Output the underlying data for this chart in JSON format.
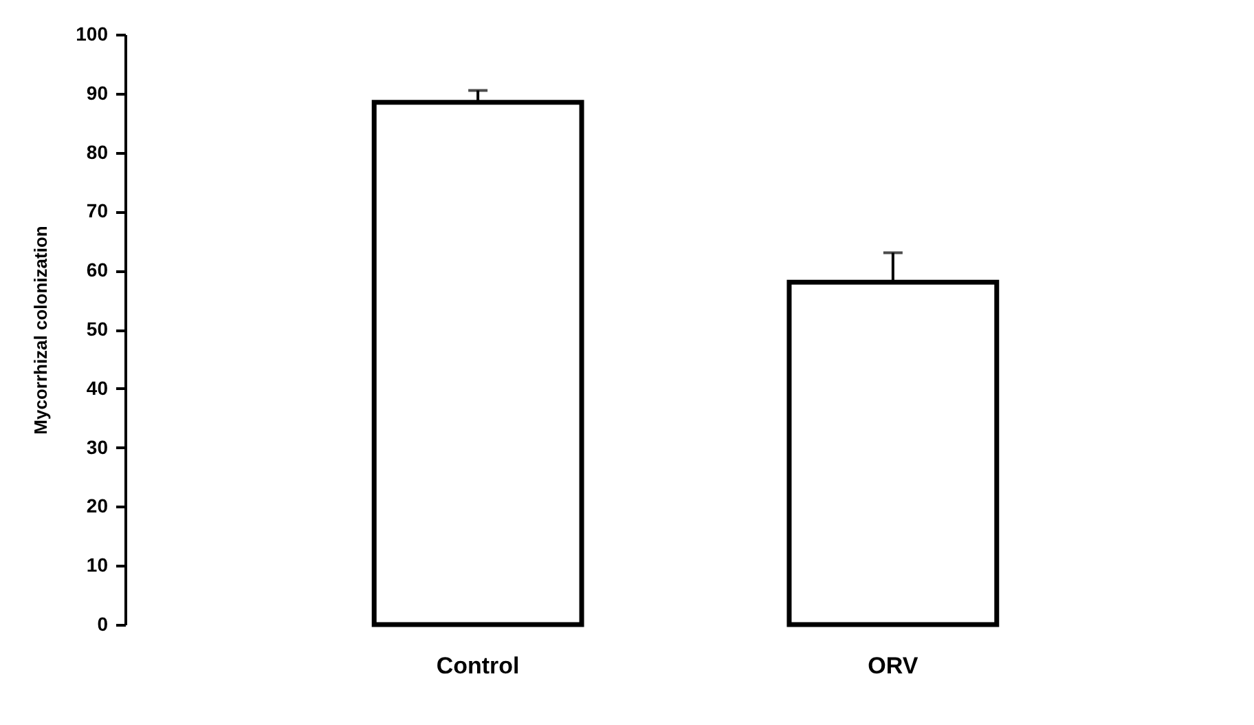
{
  "chart_data": {
    "type": "bar",
    "ylabel": "Mycorrhizal colonization",
    "categories": [
      "Control",
      "ORV"
    ],
    "values": [
      88.5,
      58
    ],
    "errors": [
      [
        88.5,
        90.5
      ],
      [
        58,
        63
      ]
    ],
    "color": "#ffffff",
    "ylim": [
      0,
      100
    ],
    "yticks": [
      0,
      10,
      20,
      30,
      40,
      50,
      60,
      70,
      80,
      90,
      100
    ],
    "grid": false
  }
}
